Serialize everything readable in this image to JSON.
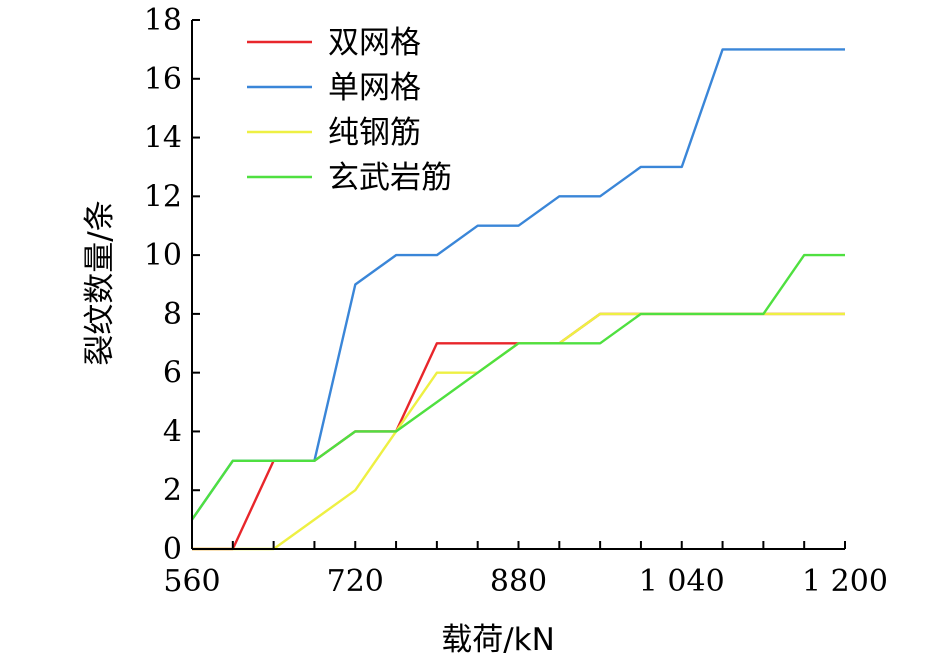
{
  "chart_data": {
    "type": "line",
    "xlabel": "载荷/kN",
    "ylabel": "裂纹数量/条",
    "xlim": [
      560,
      1200
    ],
    "ylim": [
      0,
      18
    ],
    "x_ticks": [
      560,
      600,
      640,
      680,
      720,
      760,
      800,
      840,
      880,
      920,
      960,
      1000,
      1040,
      1080,
      1120,
      1160,
      1200
    ],
    "x_tick_labels": [
      {
        "value": 560,
        "label": "560"
      },
      {
        "value": 720,
        "label": "720"
      },
      {
        "value": 880,
        "label": "880"
      },
      {
        "value": 1040,
        "label": "1 040"
      },
      {
        "value": 1200,
        "label": "1 200"
      }
    ],
    "y_ticks": [
      {
        "value": 0,
        "label": "0"
      },
      {
        "value": 2,
        "label": "2"
      },
      {
        "value": 4,
        "label": "4"
      },
      {
        "value": 6,
        "label": "6"
      },
      {
        "value": 8,
        "label": "8"
      },
      {
        "value": 10,
        "label": "10"
      },
      {
        "value": 12,
        "label": "12"
      },
      {
        "value": 14,
        "label": "14"
      },
      {
        "value": 16,
        "label": "16"
      },
      {
        "value": 18,
        "label": "18"
      }
    ],
    "legend_position": "top-left",
    "grid": false,
    "series": [
      {
        "name": "双网格",
        "color": "#e8262b",
        "points": [
          [
            560,
            0
          ],
          [
            600,
            0
          ],
          [
            640,
            3
          ],
          [
            680,
            3
          ],
          [
            720,
            4
          ],
          [
            760,
            4
          ],
          [
            800,
            7
          ],
          [
            840,
            7
          ],
          [
            880,
            7
          ],
          [
            920,
            7
          ],
          [
            960,
            8
          ],
          [
            1000,
            8
          ],
          [
            1040,
            8
          ],
          [
            1080,
            8
          ],
          [
            1120,
            8
          ],
          [
            1160,
            8
          ],
          [
            1200,
            8
          ]
        ]
      },
      {
        "name": "单网格",
        "color": "#3a86d8",
        "points": [
          [
            560,
            1
          ],
          [
            600,
            3
          ],
          [
            640,
            3
          ],
          [
            680,
            3
          ],
          [
            720,
            9
          ],
          [
            760,
            10
          ],
          [
            800,
            10
          ],
          [
            840,
            11
          ],
          [
            880,
            11
          ],
          [
            920,
            12
          ],
          [
            960,
            12
          ],
          [
            1000,
            13
          ],
          [
            1040,
            13
          ],
          [
            1080,
            17
          ],
          [
            1120,
            17
          ],
          [
            1160,
            17
          ],
          [
            1200,
            17
          ]
        ]
      },
      {
        "name": "纯钢筋",
        "color": "#eef043",
        "points": [
          [
            560,
            0
          ],
          [
            600,
            0
          ],
          [
            640,
            0
          ],
          [
            680,
            1
          ],
          [
            720,
            2
          ],
          [
            760,
            4
          ],
          [
            800,
            6
          ],
          [
            840,
            6
          ],
          [
            880,
            7
          ],
          [
            920,
            7
          ],
          [
            960,
            8
          ],
          [
            1000,
            8
          ],
          [
            1040,
            8
          ],
          [
            1080,
            8
          ],
          [
            1120,
            8
          ],
          [
            1160,
            8
          ],
          [
            1200,
            8
          ]
        ]
      },
      {
        "name": "玄武岩筋",
        "color": "#4fe040",
        "points": [
          [
            560,
            1
          ],
          [
            600,
            3
          ],
          [
            640,
            3
          ],
          [
            680,
            3
          ],
          [
            720,
            4
          ],
          [
            760,
            4
          ],
          [
            800,
            5
          ],
          [
            840,
            6
          ],
          [
            880,
            7
          ],
          [
            920,
            7
          ],
          [
            960,
            7
          ],
          [
            1000,
            8
          ],
          [
            1040,
            8
          ],
          [
            1080,
            8
          ],
          [
            1120,
            8
          ],
          [
            1160,
            10
          ],
          [
            1200,
            10
          ]
        ]
      }
    ]
  }
}
